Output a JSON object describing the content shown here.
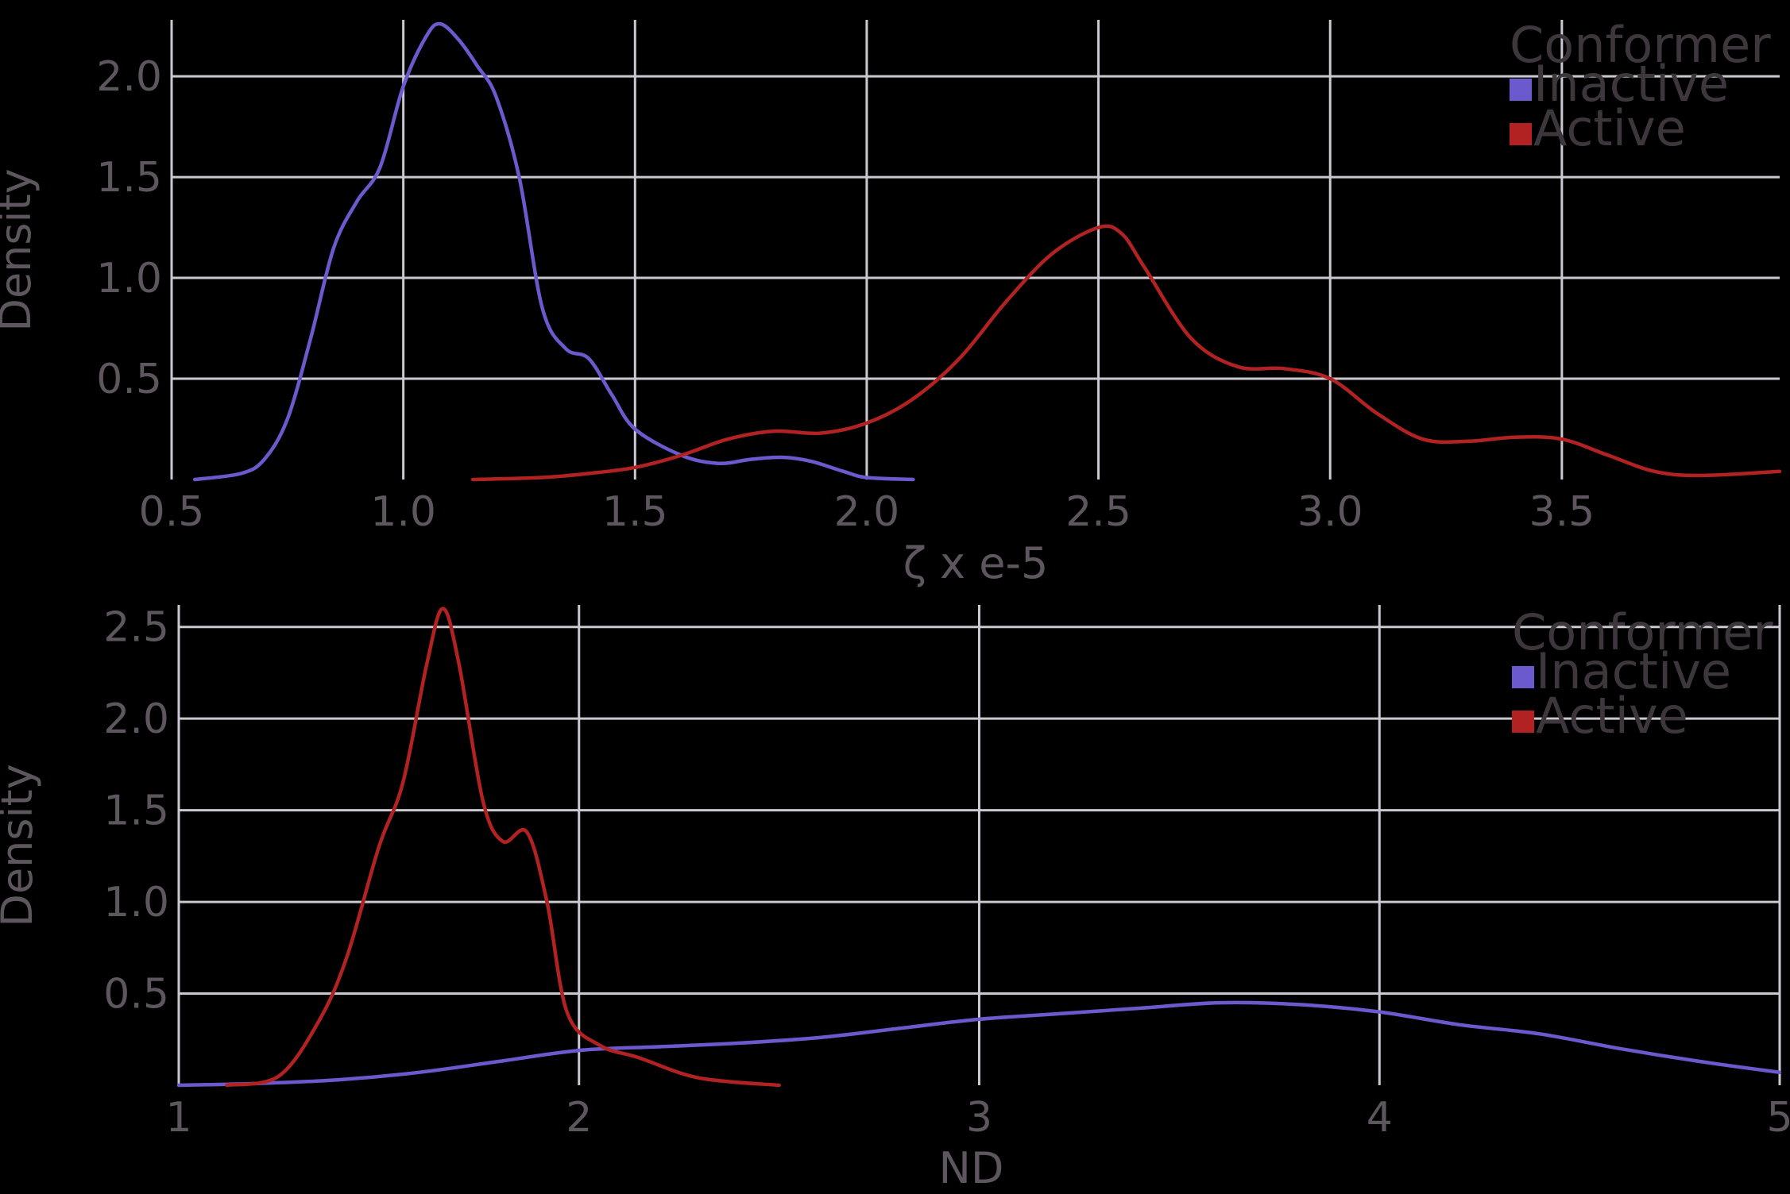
{
  "colors": {
    "Inactive": "#6a5acd",
    "Active": "#b22222"
  },
  "chart_data": [
    {
      "type": "line",
      "title": "",
      "xlabel": "ζ x e-5",
      "ylabel": "Density",
      "xlim": [
        0.5,
        3.97
      ],
      "ylim": [
        0,
        2.28
      ],
      "xticks": [
        0.5,
        1.0,
        1.5,
        2.0,
        2.5,
        3.0,
        3.5
      ],
      "xtick_labels": [
        "0.5",
        "1.0",
        "1.5",
        "2.0",
        "2.5",
        "3.0",
        "3.5"
      ],
      "yticks": [
        0.5,
        1.0,
        1.5,
        2.0
      ],
      "ytick_labels": [
        "0.5",
        "1.0",
        "1.5",
        "2.0"
      ],
      "grid": true,
      "legend": {
        "title": "Conformer",
        "position": "top-right"
      },
      "series": [
        {
          "name": "Inactive",
          "x": [
            0.55,
            0.65,
            0.7,
            0.75,
            0.8,
            0.85,
            0.9,
            0.95,
            1.0,
            1.05,
            1.08,
            1.12,
            1.16,
            1.2,
            1.25,
            1.3,
            1.35,
            1.4,
            1.45,
            1.5,
            1.6,
            1.68,
            1.75,
            1.82,
            1.88,
            1.95,
            2.0,
            2.1
          ],
          "y": [
            0.0,
            0.03,
            0.1,
            0.3,
            0.7,
            1.15,
            1.38,
            1.55,
            1.95,
            2.2,
            2.26,
            2.18,
            2.05,
            1.9,
            1.5,
            0.85,
            0.65,
            0.6,
            0.42,
            0.25,
            0.12,
            0.08,
            0.1,
            0.11,
            0.09,
            0.04,
            0.01,
            0.0
          ]
        },
        {
          "name": "Active",
          "x": [
            1.15,
            1.3,
            1.4,
            1.5,
            1.6,
            1.7,
            1.8,
            1.9,
            2.0,
            2.1,
            2.2,
            2.3,
            2.4,
            2.5,
            2.55,
            2.6,
            2.7,
            2.8,
            2.9,
            3.0,
            3.1,
            3.2,
            3.3,
            3.4,
            3.5,
            3.6,
            3.7,
            3.8,
            3.97
          ],
          "y": [
            0.0,
            0.01,
            0.03,
            0.06,
            0.12,
            0.2,
            0.24,
            0.23,
            0.28,
            0.4,
            0.6,
            0.88,
            1.12,
            1.25,
            1.22,
            1.05,
            0.7,
            0.56,
            0.55,
            0.5,
            0.33,
            0.2,
            0.19,
            0.21,
            0.2,
            0.12,
            0.04,
            0.02,
            0.04
          ]
        }
      ]
    },
    {
      "type": "line",
      "title": "",
      "xlabel": "ND",
      "ylabel": "Density",
      "xlim": [
        1,
        5
      ],
      "ylim": [
        0,
        2.62
      ],
      "xticks": [
        1,
        2,
        3,
        4,
        5
      ],
      "xtick_labels": [
        "1",
        "2",
        "3",
        "4",
        "5"
      ],
      "yticks": [
        0.5,
        1.0,
        1.5,
        2.0,
        2.5
      ],
      "ytick_labels": [
        "0.5",
        "1.0",
        "1.5",
        "2.0",
        "2.5"
      ],
      "grid": true,
      "legend": {
        "title": "Conformer",
        "position": "top-right"
      },
      "series": [
        {
          "name": "Inactive",
          "x": [
            1.0,
            1.2,
            1.4,
            1.6,
            1.8,
            2.0,
            2.2,
            2.4,
            2.6,
            2.8,
            3.0,
            3.2,
            3.4,
            3.6,
            3.8,
            4.0,
            4.2,
            4.4,
            4.6,
            4.8,
            5.0
          ],
          "y": [
            0.0,
            0.01,
            0.03,
            0.07,
            0.13,
            0.19,
            0.21,
            0.23,
            0.26,
            0.31,
            0.36,
            0.39,
            0.42,
            0.45,
            0.44,
            0.4,
            0.33,
            0.28,
            0.2,
            0.13,
            0.07
          ]
        },
        {
          "name": "Active",
          "x": [
            1.12,
            1.25,
            1.35,
            1.42,
            1.5,
            1.56,
            1.62,
            1.66,
            1.7,
            1.76,
            1.81,
            1.87,
            1.92,
            1.97,
            2.05,
            2.15,
            2.3,
            2.5
          ],
          "y": [
            0.0,
            0.05,
            0.35,
            0.7,
            1.3,
            1.65,
            2.3,
            2.6,
            2.3,
            1.55,
            1.33,
            1.38,
            1.0,
            0.4,
            0.22,
            0.15,
            0.04,
            0.0
          ]
        }
      ]
    }
  ]
}
